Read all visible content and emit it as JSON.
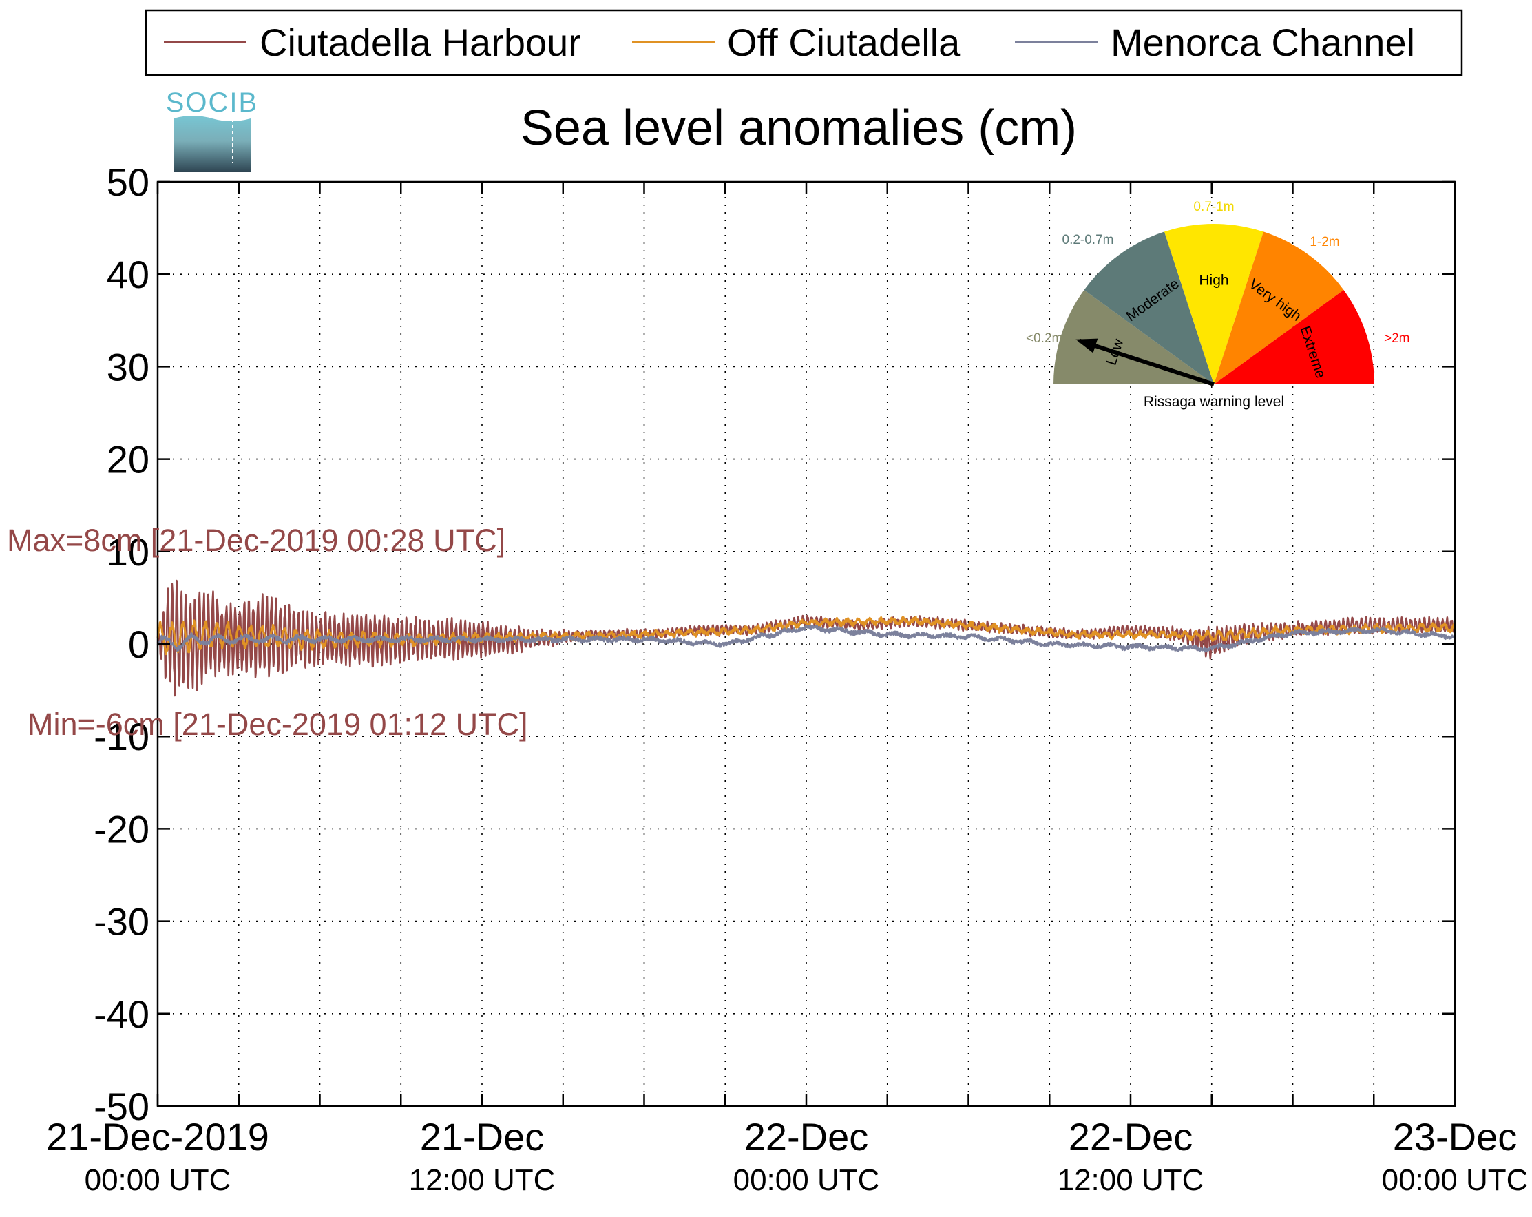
{
  "chart_data": {
    "type": "line",
    "title": "Sea level anomalies (cm)",
    "logo_text": "SOCIB",
    "ylim": [
      -50,
      50
    ],
    "yticks": [
      50,
      40,
      30,
      20,
      10,
      0,
      -10,
      -20,
      -30,
      -40,
      -50
    ],
    "xlim": [
      "2019-12-21T00:00",
      "2019-12-23T00:00"
    ],
    "x_tick_labels": [
      {
        "at": "2019-12-21T00:00",
        "line1": "21-Dec-2019",
        "line2": "00:00 UTC"
      },
      {
        "at": "2019-12-21T12:00",
        "line1": "21-Dec",
        "line2": "12:00 UTC"
      },
      {
        "at": "2019-12-22T00:00",
        "line1": "22-Dec",
        "line2": "00:00 UTC"
      },
      {
        "at": "2019-12-22T12:00",
        "line1": "22-Dec",
        "line2": "12:00 UTC"
      },
      {
        "at": "2019-12-23T00:00",
        "line1": "23-Dec",
        "line2": "00:00 UTC"
      }
    ],
    "grid": true,
    "legend_placement": "top",
    "series": [
      {
        "name": "Ciutadella Harbour",
        "color": "#944848",
        "envelope_times": [
          "2019-12-21T00:00",
          "2019-12-21T00:28",
          "2019-12-21T01:12",
          "2019-12-21T02:00",
          "2019-12-21T03:00",
          "2019-12-21T04:00",
          "2019-12-21T06:00",
          "2019-12-21T08:00",
          "2019-12-21T10:00",
          "2019-12-21T12:00",
          "2019-12-21T14:00",
          "2019-12-21T16:00",
          "2019-12-21T18:00",
          "2019-12-21T20:00",
          "2019-12-21T22:00",
          "2019-12-22T00:00",
          "2019-12-22T02:00",
          "2019-12-22T04:00",
          "2019-12-22T06:00",
          "2019-12-22T08:00",
          "2019-12-22T10:00",
          "2019-12-22T12:00",
          "2019-12-22T14:00",
          "2019-12-22T15:00",
          "2019-12-22T16:00",
          "2019-12-22T18:00",
          "2019-12-22T20:00",
          "2019-12-22T22:00",
          "2019-12-23T00:00"
        ],
        "envelope_mid": [
          0,
          1,
          0,
          1,
          0.5,
          1,
          0.5,
          0.5,
          0.5,
          0.5,
          0.5,
          1,
          1,
          1.5,
          1.5,
          2.5,
          2,
          2.5,
          2,
          1.5,
          1,
          1.5,
          1,
          0,
          1,
          1.5,
          2,
          2,
          2
        ],
        "envelope_amp": [
          1,
          7,
          6,
          5,
          4,
          5,
          3,
          3,
          2.5,
          2,
          1,
          0.5,
          0.5,
          0.5,
          0.5,
          0.5,
          0.5,
          0.5,
          0.5,
          0.5,
          0.5,
          0.5,
          0.7,
          2,
          1.2,
          0.8,
          0.8,
          0.8,
          0.8
        ],
        "period_minutes": 10
      },
      {
        "name": "Off Ciutadella",
        "color": "#e09224",
        "envelope_times": [
          "2019-12-21T00:00",
          "2019-12-21T02:00",
          "2019-12-21T06:00",
          "2019-12-21T10:00",
          "2019-12-21T12:00",
          "2019-12-21T18:00",
          "2019-12-21T22:00",
          "2019-12-22T00:00",
          "2019-12-22T04:00",
          "2019-12-22T10:00",
          "2019-12-22T14:00",
          "2019-12-22T15:00",
          "2019-12-22T18:00",
          "2019-12-23T00:00"
        ],
        "envelope_mid": [
          0.5,
          1,
          0.5,
          0.5,
          0.7,
          1,
          1.5,
          2.3,
          2.5,
          1,
          1,
          0.8,
          1.5,
          1.8
        ],
        "envelope_amp": [
          2,
          1.5,
          1,
          0.6,
          0.4,
          0.3,
          0.3,
          0.3,
          0.3,
          0.3,
          0.3,
          0.6,
          0.4,
          0.4
        ],
        "period_minutes": 25
      },
      {
        "name": "Menorca Channel",
        "color": "#7c819c",
        "envelope_times": [
          "2019-12-21T00:00",
          "2019-12-21T02:00",
          "2019-12-21T06:00",
          "2019-12-21T12:00",
          "2019-12-21T18:00",
          "2019-12-21T21:00",
          "2019-12-22T00:00",
          "2019-12-22T03:00",
          "2019-12-22T06:00",
          "2019-12-22T09:00",
          "2019-12-22T12:00",
          "2019-12-22T15:00",
          "2019-12-22T18:00",
          "2019-12-22T21:00",
          "2019-12-23T00:00"
        ],
        "envelope_mid": [
          0,
          0.5,
          0.5,
          0.5,
          0.5,
          0,
          1.8,
          1,
          0.8,
          0,
          -0.3,
          -0.5,
          1.2,
          1.5,
          0.8
        ],
        "envelope_amp": [
          1,
          0.5,
          0.3,
          0.2,
          0.2,
          0.2,
          0.2,
          0.2,
          0.2,
          0.2,
          0.2,
          0.2,
          0.2,
          0.2,
          0.2
        ],
        "period_minutes": 60
      }
    ],
    "annotations": [
      {
        "name": "max-annotation",
        "text": "Max=8cm [21-Dec-2019 00:28 UTC]",
        "color": "#944848"
      },
      {
        "name": "min-annotation",
        "text": "Min=-6cm [21-Dec-2019 01:12 UTC]",
        "color": "#944848"
      }
    ],
    "gauge": {
      "title": "Rissaga warning level",
      "needle_level": "Low",
      "segments": [
        {
          "label": "Low",
          "range": "<0.2m",
          "color": "#868a6a",
          "range_color": "#868a6a"
        },
        {
          "label": "Moderate",
          "range": "0.2-0.7m",
          "color": "#5d7a78",
          "range_color": "#5d7a78"
        },
        {
          "label": "High",
          "range": "0.7-1m",
          "color": "#ffe600",
          "range_color": "#f2d800"
        },
        {
          "label": "Very high",
          "range": "1-2m",
          "color": "#ff8400",
          "range_color": "#ff8400"
        },
        {
          "label": "Extreme",
          "range": ">2m",
          "color": "#ff0000",
          "range_color": "#ff0000"
        }
      ]
    }
  }
}
